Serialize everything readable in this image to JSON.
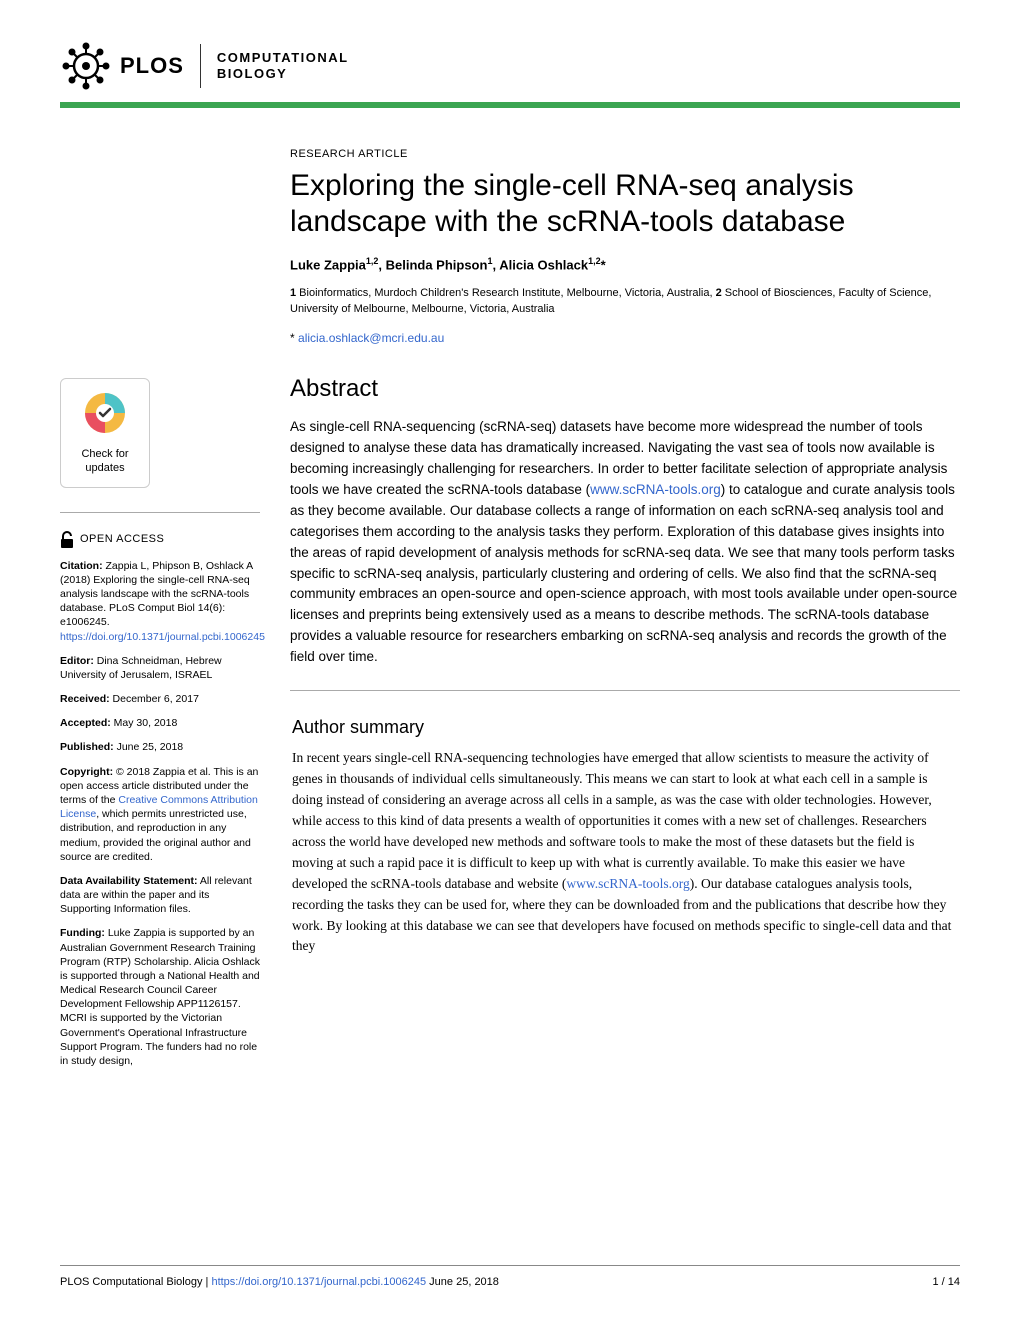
{
  "header": {
    "logo_text": "PLOS",
    "journal_line1": "COMPUTATIONAL",
    "journal_line2": "BIOLOGY",
    "brand_color": "#3ba551"
  },
  "sidebar": {
    "check_updates_line1": "Check for",
    "check_updates_line2": "updates",
    "open_access": "OPEN ACCESS",
    "citation_label": "Citation:",
    "citation_text": " Zappia L, Phipson B, Oshlack A (2018) Exploring the single-cell RNA-seq analysis landscape with the scRNA-tools database. PLoS Comput Biol 14(6): e1006245. ",
    "citation_link": "https://doi.org/10.1371/journal.pcbi.1006245",
    "editor_label": "Editor:",
    "editor_text": " Dina Schneidman, Hebrew University of Jerusalem, ISRAEL",
    "received_label": "Received:",
    "received_text": " December 6, 2017",
    "accepted_label": "Accepted:",
    "accepted_text": " May 30, 2018",
    "published_label": "Published:",
    "published_text": " June 25, 2018",
    "copyright_label": "Copyright:",
    "copyright_text1": " © 2018 Zappia et al. This is an open access article distributed under the terms of the ",
    "copyright_link": "Creative Commons Attribution License",
    "copyright_text2": ", which permits unrestricted use, distribution, and reproduction in any medium, provided the original author and source are credited.",
    "data_label": "Data Availability Statement:",
    "data_text": " All relevant data are within the paper and its Supporting Information files.",
    "funding_label": "Funding:",
    "funding_text": " Luke Zappia is supported by an Australian Government Research Training Program (RTP) Scholarship. Alicia Oshlack is supported through a National Health and Medical Research Council Career Development Fellowship APP1126157. MCRI is supported by the Victorian Government's Operational Infrastructure Support Program. The funders had no role in study design,"
  },
  "article": {
    "type": "RESEARCH ARTICLE",
    "title": "Exploring the single-cell RNA-seq analysis landscape with the scRNA-tools database",
    "authors_html": "Luke Zappia<sup>1,2</sup>, Belinda Phipson<sup>1</sup>, Alicia Oshlack<sup>1,2</sup>*",
    "affiliations": "1 Bioinformatics, Murdoch Children's Research Institute, Melbourne, Victoria, Australia, 2 School of Biosciences, Faculty of Science, University of Melbourne, Melbourne, Victoria, Australia",
    "email_prefix": "* ",
    "email": "alicia.oshlack@mcri.edu.au",
    "abstract_heading": "Abstract",
    "abstract_text1": "As single-cell RNA-sequencing (scRNA-seq) datasets have become more widespread the number of tools designed to analyse these data has dramatically increased. Navigating the vast sea of tools now available is becoming increasingly challenging for researchers. In order to better facilitate selection of appropriate analysis tools we have created the scRNA-tools database (",
    "abstract_link": "www.scRNA-tools.org",
    "abstract_text2": ") to catalogue and curate analysis tools as they become available. Our database collects a range of information on each scRNA-seq analysis tool and categorises them according to the analysis tasks they perform. Exploration of this database gives insights into the areas of rapid development of analysis methods for scRNA-seq data. We see that many tools perform tasks specific to scRNA-seq analysis, particularly clustering and ordering of cells. We also find that the scRNA-seq community embraces an open-source and open-science approach, with most tools available under open-source licenses and preprints being extensively used as a means to describe methods. The scRNA-tools database provides a valuable resource for researchers embarking on scRNA-seq analysis and records the growth of the field over time.",
    "summary_heading": "Author summary",
    "summary_text1": "In recent years single-cell RNA-sequencing technologies have emerged that allow scientists to measure the activity of genes in thousands of individual cells simultaneously. This means we can start to look at what each cell in a sample is doing instead of considering an average across all cells in a sample, as was the case with older technologies. However, while access to this kind of data presents a wealth of opportunities it comes with a new set of challenges. Researchers across the world have developed new methods and software tools to make the most of these datasets but the field is moving at such a rapid pace it is difficult to keep up with what is currently available. To make this easier we have developed the scRNA-tools database and website (",
    "summary_link": "www.scRNA-tools.org",
    "summary_text2": "). Our database catalogues analysis tools, recording the tasks they can be used for, where they can be downloaded from and the publications that describe how they work. By looking at this database we can see that developers have focused on methods specific to single-cell data and that they"
  },
  "footer": {
    "journal": "PLOS Computational Biology | ",
    "doi": "https://doi.org/10.1371/journal.pcbi.1006245",
    "date": "   June 25, 2018",
    "pages": "1 / 14"
  },
  "colors": {
    "link": "#3366cc",
    "check_gold": "#f4b942",
    "check_teal": "#4ec3c7",
    "check_red": "#e94f60"
  }
}
